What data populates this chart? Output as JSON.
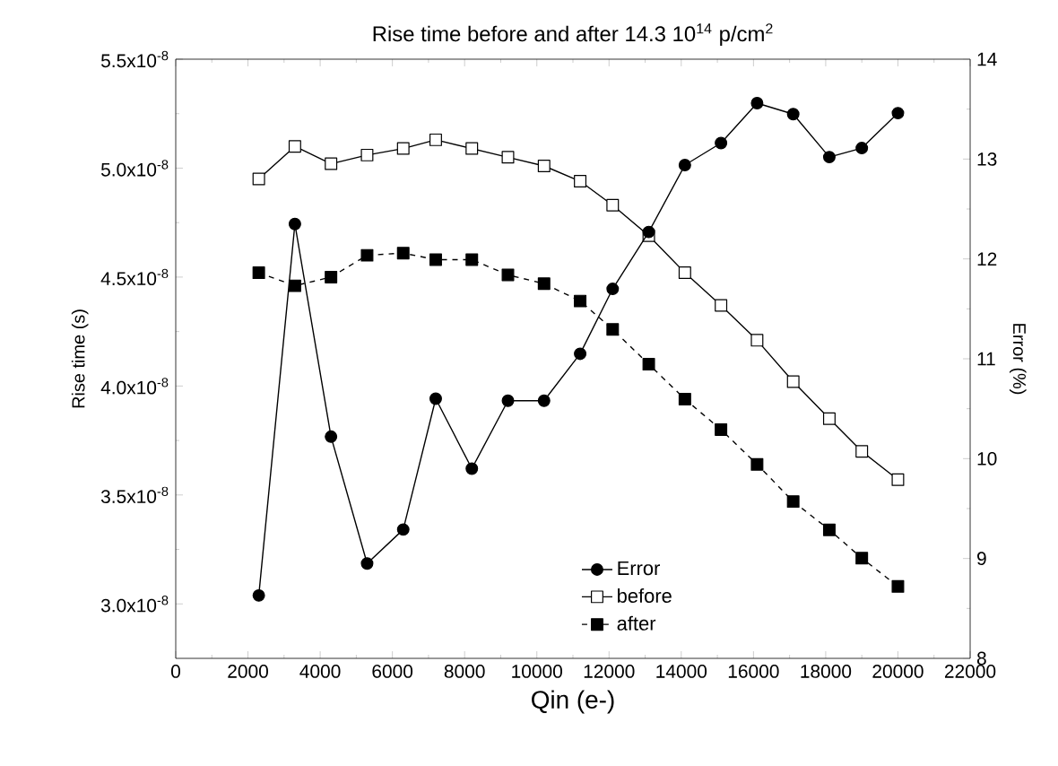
{
  "chart_data": {
    "type": "line",
    "title": "Rise time before and after 14.3 10$^{14}$ p/cm$^{2}$",
    "xlabel": "Qin (e-)",
    "ylabel": "Rise time (s)",
    "y2label": "Error (%)",
    "x": [
      2300,
      3300,
      4300,
      5300,
      6300,
      7200,
      8200,
      9200,
      10200,
      11200,
      12100,
      13100,
      14100,
      15100,
      16100,
      17100,
      18100,
      19000,
      20000
    ],
    "series": [
      {
        "name": "Error",
        "color": "#000000",
        "marker": "circle",
        "axis": "y2",
        "values": [
          8.63,
          12.35,
          10.22,
          8.95,
          9.29,
          10.6,
          9.9,
          10.58,
          10.58,
          11.05,
          11.7,
          12.27,
          12.94,
          13.16,
          13.56,
          13.45,
          13.02,
          13.11,
          13.46
        ]
      },
      {
        "name": "before",
        "color": "#000000",
        "marker": "square",
        "values": [
          4.95e-08,
          5.1e-08,
          5.02e-08,
          5.06e-08,
          5.09e-08,
          5.13e-08,
          5.09e-08,
          5.05e-08,
          5.01e-08,
          4.94e-08,
          4.83e-08,
          4.69e-08,
          4.52e-08,
          4.37e-08,
          4.21e-08,
          4.02e-08,
          3.85e-08,
          3.7e-08,
          3.57e-08
        ]
      },
      {
        "name": "after",
        "color": "#000000",
        "marker": "square",
        "line_style": "dashed",
        "values": [
          4.52e-08,
          4.46e-08,
          4.5e-08,
          4.6e-08,
          4.61e-08,
          4.58e-08,
          4.58e-08,
          4.51e-08,
          4.47e-08,
          4.39e-08,
          4.26e-08,
          4.1e-08,
          3.94e-08,
          3.8e-08,
          3.64e-08,
          3.47e-08,
          3.34e-08,
          3.21e-08,
          3.08e-08
        ]
      }
    ],
    "xlim": [
      0,
      22000
    ],
    "xticks": [
      0,
      2000,
      4000,
      6000,
      8000,
      10000,
      12000,
      14000,
      16000,
      18000,
      20000,
      22000
    ],
    "ylim": [
      2.75e-08,
      5.5e-08
    ],
    "yticks": [
      {
        "value": 3e-08,
        "label": "3.0x10$^{-8}$"
      },
      {
        "value": 3.5e-08,
        "label": "3.5x10$^{-8}$"
      },
      {
        "value": 4e-08,
        "label": "4.0x10$^{-8}$"
      },
      {
        "value": 4.5e-08,
        "label": "4.5x10$^{-8}$"
      },
      {
        "value": 5e-08,
        "label": "5.0x10$^{-8}$"
      },
      {
        "value": 5.5e-08,
        "label": "5.5x10$^{-8}$"
      }
    ],
    "y2lim": [
      8,
      14
    ],
    "y2ticks": [
      8,
      9,
      10,
      11,
      12,
      13,
      14
    ],
    "legend": "bottom",
    "grid": false,
    "line_style": "solid"
  }
}
